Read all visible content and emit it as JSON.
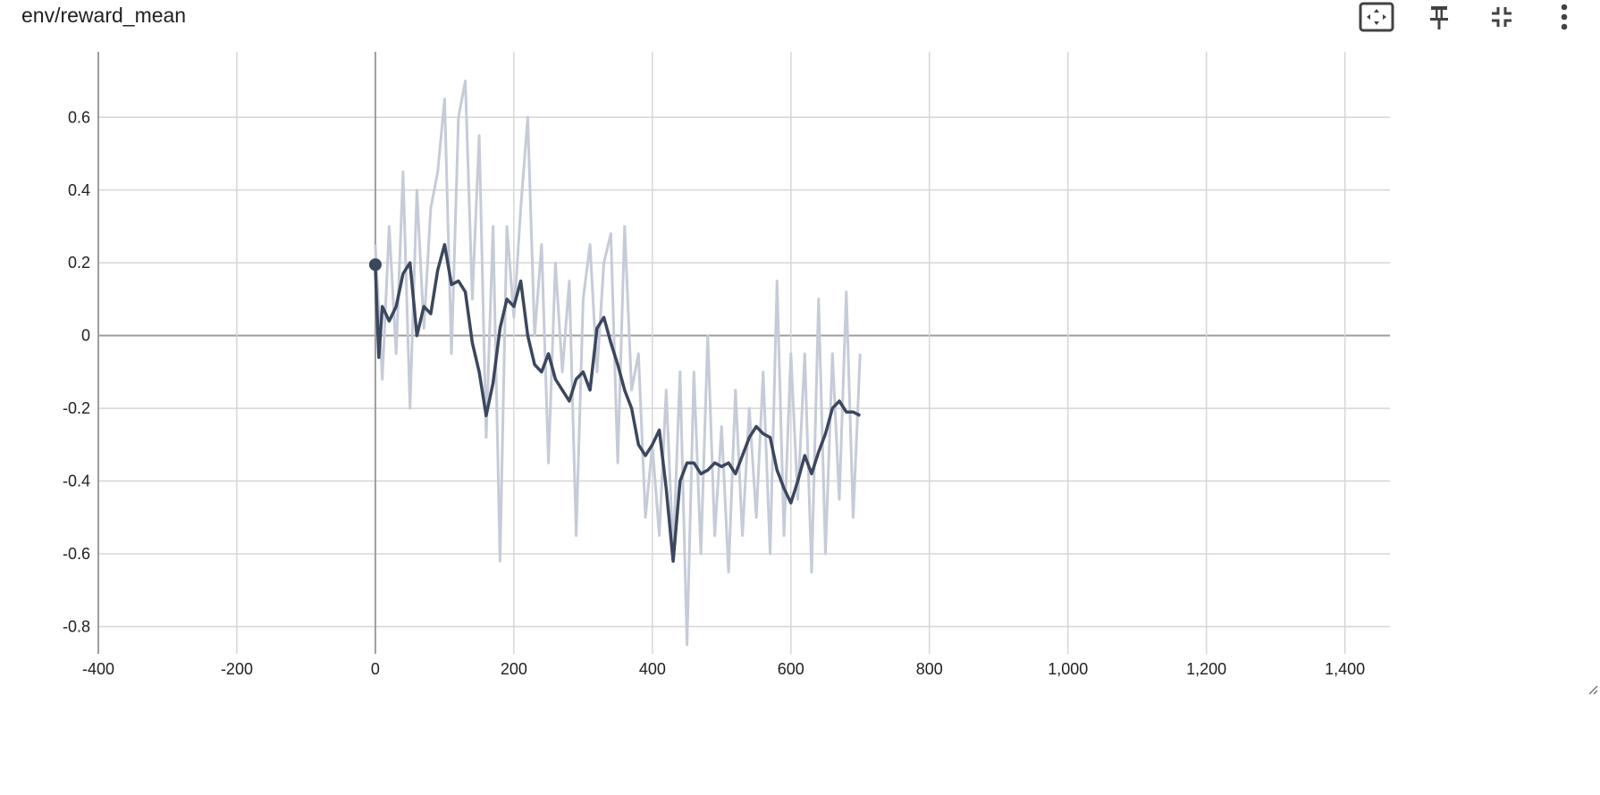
{
  "card": {
    "title": "env/reward_mean"
  },
  "toolbar": {
    "icons": [
      "fit-to-data-icon",
      "pin-icon",
      "collapse-icon",
      "more-vert-icon"
    ]
  },
  "colors": {
    "raw_line": "#c6cbd8",
    "smoothed_line": "#3b475e",
    "grid": "#d6d6d6",
    "zero_axis": "#9e9e9e",
    "text": "#212121"
  },
  "chart_data": {
    "type": "line",
    "title": "env/reward_mean",
    "xlabel": "",
    "ylabel": "",
    "xlim": [
      -400,
      1465
    ],
    "ylim": [
      -0.875,
      0.78
    ],
    "xticks": [
      -400,
      -200,
      0,
      200,
      400,
      600,
      800,
      1000,
      1200,
      1400
    ],
    "xtick_labels": [
      "-400",
      "-200",
      "0",
      "200",
      "400",
      "600",
      "800",
      "1,000",
      "1,200",
      "1,400"
    ],
    "yticks": [
      -0.8,
      -0.6,
      -0.4,
      -0.2,
      0,
      0.2,
      0.4,
      0.6
    ],
    "ytick_labels": [
      "-0.8",
      "-0.6",
      "-0.4",
      "-0.2",
      "0",
      "0.2",
      "0.4",
      "0.6"
    ],
    "grid": true,
    "series": [
      {
        "style": "raw",
        "x": [
          0,
          10,
          20,
          30,
          40,
          50,
          60,
          70,
          80,
          90,
          100,
          110,
          120,
          130,
          140,
          150,
          160,
          170,
          180,
          190,
          200,
          210,
          220,
          230,
          240,
          250,
          260,
          270,
          280,
          290,
          300,
          310,
          320,
          330,
          340,
          350,
          360,
          370,
          380,
          390,
          400,
          410,
          420,
          430,
          440,
          450,
          460,
          470,
          480,
          490,
          500,
          510,
          520,
          530,
          540,
          550,
          560,
          570,
          580,
          590,
          600,
          610,
          620,
          630,
          640,
          650,
          660,
          670,
          680,
          690,
          700
        ],
        "y": [
          0.25,
          -0.12,
          0.3,
          -0.05,
          0.45,
          -0.2,
          0.4,
          0.02,
          0.35,
          0.45,
          0.65,
          -0.05,
          0.6,
          0.7,
          0.1,
          0.55,
          -0.28,
          0.3,
          -0.62,
          0.3,
          0.05,
          0.35,
          0.6,
          0.0,
          0.25,
          -0.35,
          0.2,
          -0.1,
          0.15,
          -0.55,
          0.1,
          0.25,
          -0.1,
          0.2,
          0.28,
          -0.35,
          0.3,
          -0.15,
          -0.05,
          -0.5,
          -0.3,
          -0.55,
          -0.15,
          -0.6,
          -0.1,
          -0.85,
          -0.1,
          -0.6,
          0.0,
          -0.55,
          -0.25,
          -0.65,
          -0.15,
          -0.55,
          -0.2,
          -0.5,
          -0.1,
          -0.6,
          0.15,
          -0.55,
          -0.05,
          -0.45,
          -0.05,
          -0.65,
          0.1,
          -0.6,
          -0.05,
          -0.45,
          0.12,
          -0.5,
          -0.05
        ]
      },
      {
        "style": "smoothed",
        "x": [
          0,
          5,
          10,
          20,
          30,
          40,
          50,
          60,
          70,
          80,
          90,
          100,
          110,
          120,
          130,
          140,
          150,
          160,
          170,
          180,
          190,
          200,
          210,
          220,
          230,
          240,
          250,
          260,
          270,
          280,
          290,
          300,
          310,
          320,
          330,
          340,
          350,
          360,
          370,
          380,
          390,
          400,
          410,
          420,
          430,
          440,
          450,
          460,
          470,
          480,
          490,
          500,
          510,
          520,
          530,
          540,
          550,
          560,
          570,
          580,
          590,
          600,
          610,
          620,
          630,
          640,
          650,
          660,
          670,
          680,
          690,
          700
        ],
        "y": [
          0.19,
          -0.06,
          0.08,
          0.04,
          0.08,
          0.17,
          0.2,
          0.0,
          0.08,
          0.06,
          0.18,
          0.25,
          0.14,
          0.15,
          0.12,
          -0.02,
          -0.1,
          -0.22,
          -0.13,
          0.02,
          0.1,
          0.08,
          0.15,
          0.0,
          -0.08,
          -0.1,
          -0.05,
          -0.12,
          -0.15,
          -0.18,
          -0.12,
          -0.1,
          -0.15,
          0.02,
          0.05,
          -0.02,
          -0.08,
          -0.15,
          -0.2,
          -0.3,
          -0.33,
          -0.3,
          -0.26,
          -0.42,
          -0.62,
          -0.4,
          -0.35,
          -0.35,
          -0.38,
          -0.37,
          -0.35,
          -0.36,
          -0.35,
          -0.38,
          -0.33,
          -0.28,
          -0.25,
          -0.27,
          -0.28,
          -0.37,
          -0.42,
          -0.46,
          -0.4,
          -0.33,
          -0.38,
          -0.32,
          -0.27,
          -0.2,
          -0.18,
          -0.21,
          -0.21,
          -0.22
        ]
      }
    ],
    "marker": {
      "x": 0,
      "y": 0.195
    }
  }
}
